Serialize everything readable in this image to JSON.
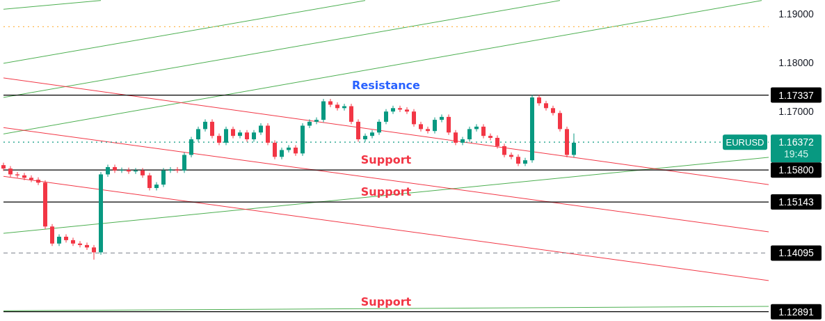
{
  "chart_data": {
    "type": "candlestick",
    "categories": [
      null,
      null,
      null,
      null,
      null,
      null,
      null,
      null,
      null,
      null,
      null,
      null,
      null,
      null,
      null,
      null,
      null,
      null,
      null,
      null,
      null,
      null,
      null,
      null,
      null,
      null,
      null,
      null,
      null,
      null,
      null,
      null,
      null,
      null,
      null,
      null,
      null,
      null,
      null,
      null,
      null,
      null,
      null,
      null,
      null,
      null,
      null,
      null,
      null,
      null,
      null,
      null,
      null,
      null,
      null,
      null,
      null,
      null,
      null,
      null,
      null,
      null,
      null,
      null,
      null,
      null,
      null,
      null,
      null,
      null,
      null,
      null,
      null,
      null,
      null,
      null,
      null,
      null,
      null,
      null,
      null,
      null,
      null,
      null,
      null,
      null,
      null,
      null,
      null,
      null,
      null,
      null,
      null,
      null,
      null,
      null,
      null,
      null,
      null,
      null,
      null,
      null,
      null,
      null,
      null,
      null,
      null,
      null,
      null,
      null,
      null
    ],
    "ohlc": [
      [
        1.159,
        1.1595,
        1.1578,
        1.1583
      ],
      [
        1.1583,
        1.1588,
        1.1566,
        1.1571
      ],
      [
        1.1571,
        1.1576,
        1.1564,
        1.1569
      ],
      [
        1.1569,
        1.1574,
        1.1559,
        1.1564
      ],
      [
        1.1564,
        1.1569,
        1.1555,
        1.156
      ],
      [
        1.156,
        1.1565,
        1.1549,
        1.1554
      ],
      [
        1.1554,
        1.1559,
        1.1459,
        1.1464
      ],
      [
        1.1464,
        1.1469,
        1.1424,
        1.1429
      ],
      [
        1.1429,
        1.1448,
        1.1424,
        1.1443
      ],
      [
        1.1443,
        1.1448,
        1.1431,
        1.1436
      ],
      [
        1.1436,
        1.1441,
        1.1424,
        1.1429
      ],
      [
        1.1429,
        1.1434,
        1.1421,
        1.1426
      ],
      [
        1.1426,
        1.1431,
        1.1416,
        1.1421
      ],
      [
        1.1421,
        1.1426,
        1.1396,
        1.1411
      ],
      [
        1.1411,
        1.1576,
        1.1406,
        1.1571
      ],
      [
        1.1571,
        1.1591,
        1.1566,
        1.1586
      ],
      [
        1.1586,
        1.1591,
        1.1574,
        1.1579
      ],
      [
        1.1579,
        1.1585,
        1.1574,
        1.158
      ],
      [
        1.158,
        1.1585,
        1.1572,
        1.1577
      ],
      [
        1.1577,
        1.1584,
        1.1572,
        1.1579
      ],
      [
        1.1579,
        1.1584,
        1.1564,
        1.1569
      ],
      [
        1.1569,
        1.1574,
        1.1538,
        1.1543
      ],
      [
        1.1543,
        1.1555,
        1.1538,
        1.155
      ],
      [
        1.155,
        1.1584,
        1.1545,
        1.1579
      ],
      [
        1.1579,
        1.1586,
        1.1574,
        1.1581
      ],
      [
        1.1581,
        1.1586,
        1.1574,
        1.1579
      ],
      [
        1.1579,
        1.1616,
        1.1574,
        1.1611
      ],
      [
        1.1611,
        1.1648,
        1.1606,
        1.1643
      ],
      [
        1.1643,
        1.1669,
        1.1638,
        1.1664
      ],
      [
        1.1664,
        1.1684,
        1.1659,
        1.1679
      ],
      [
        1.1679,
        1.1684,
        1.1645,
        1.165
      ],
      [
        1.165,
        1.1655,
        1.1631,
        1.1636
      ],
      [
        1.1636,
        1.1669,
        1.1631,
        1.1664
      ],
      [
        1.1664,
        1.1669,
        1.1645,
        1.165
      ],
      [
        1.165,
        1.1662,
        1.1645,
        1.1657
      ],
      [
        1.1657,
        1.1662,
        1.1638,
        1.1643
      ],
      [
        1.1643,
        1.1662,
        1.1638,
        1.1657
      ],
      [
        1.1657,
        1.1676,
        1.1652,
        1.1671
      ],
      [
        1.1671,
        1.1676,
        1.1631,
        1.1636
      ],
      [
        1.1636,
        1.1641,
        1.1602,
        1.1607
      ],
      [
        1.1607,
        1.1626,
        1.1602,
        1.1621
      ],
      [
        1.1621,
        1.1631,
        1.1616,
        1.1626
      ],
      [
        1.1626,
        1.1631,
        1.1609,
        1.1614
      ],
      [
        1.1614,
        1.1676,
        1.1609,
        1.1671
      ],
      [
        1.1671,
        1.1684,
        1.1666,
        1.1679
      ],
      [
        1.1679,
        1.1688,
        1.1674,
        1.1683
      ],
      [
        1.1683,
        1.1726,
        1.1678,
        1.1721
      ],
      [
        1.1721,
        1.1726,
        1.1709,
        1.1714
      ],
      [
        1.1714,
        1.1719,
        1.1702,
        1.1707
      ],
      [
        1.1707,
        1.1716,
        1.1702,
        1.1711
      ],
      [
        1.1711,
        1.1716,
        1.1674,
        1.1679
      ],
      [
        1.1679,
        1.1684,
        1.1638,
        1.1643
      ],
      [
        1.1643,
        1.1655,
        1.1638,
        1.165
      ],
      [
        1.165,
        1.1662,
        1.1645,
        1.1657
      ],
      [
        1.1657,
        1.1684,
        1.1652,
        1.1679
      ],
      [
        1.1679,
        1.1705,
        1.1674,
        1.17
      ],
      [
        1.17,
        1.1712,
        1.1695,
        1.1707
      ],
      [
        1.1707,
        1.1712,
        1.1699,
        1.1704
      ],
      [
        1.1704,
        1.1709,
        1.1695,
        1.17
      ],
      [
        1.17,
        1.1705,
        1.1669,
        1.1674
      ],
      [
        1.1674,
        1.1679,
        1.1659,
        1.1664
      ],
      [
        1.1664,
        1.1669,
        1.1655,
        1.166
      ],
      [
        1.166,
        1.1688,
        1.1655,
        1.1683
      ],
      [
        1.1683,
        1.1694,
        1.1678,
        1.1689
      ],
      [
        1.1689,
        1.1694,
        1.1652,
        1.1657
      ],
      [
        1.1657,
        1.1662,
        1.1631,
        1.1636
      ],
      [
        1.1636,
        1.1648,
        1.1631,
        1.1643
      ],
      [
        1.1643,
        1.1669,
        1.1638,
        1.1664
      ],
      [
        1.1664,
        1.1674,
        1.1659,
        1.1669
      ],
      [
        1.1669,
        1.1674,
        1.1645,
        1.165
      ],
      [
        1.165,
        1.1655,
        1.1641,
        1.1646
      ],
      [
        1.1646,
        1.1651,
        1.1624,
        1.1629
      ],
      [
        1.1629,
        1.1634,
        1.1606,
        1.1611
      ],
      [
        1.1611,
        1.1616,
        1.1602,
        1.1607
      ],
      [
        1.1607,
        1.1612,
        1.1588,
        1.1593
      ],
      [
        1.1593,
        1.1605,
        1.1588,
        1.16
      ],
      [
        1.16,
        1.1734,
        1.1595,
        1.1729
      ],
      [
        1.1729,
        1.1734,
        1.1712,
        1.1717
      ],
      [
        1.1717,
        1.1722,
        1.1702,
        1.1707
      ],
      [
        1.1707,
        1.1712,
        1.1692,
        1.1697
      ],
      [
        1.1697,
        1.1702,
        1.1659,
        1.1664
      ],
      [
        1.1664,
        1.1669,
        1.1606,
        1.1611
      ],
      [
        1.1611,
        1.1655,
        1.1606,
        1.1636
      ],
      null,
      null,
      null,
      null,
      null,
      null,
      null,
      null,
      null,
      null,
      null,
      null,
      null,
      null,
      null,
      null,
      null,
      null,
      null,
      null,
      null,
      null,
      null,
      null,
      null,
      null,
      null,
      null
    ],
    "series": [
      {
        "type": "line",
        "color": "#4caf50",
        "values": [
          1.191,
          null,
          null,
          null,
          null,
          null,
          null,
          null,
          null,
          null,
          null,
          null,
          null,
          null,
          1.1928,
          null,
          null,
          null,
          null,
          null,
          null,
          null,
          null,
          null,
          null,
          null,
          null,
          null,
          null,
          null,
          null,
          null,
          null,
          null,
          null,
          null,
          null,
          null,
          null,
          null,
          null,
          null,
          null,
          null,
          null,
          null,
          null,
          null,
          null,
          null,
          null,
          null,
          null,
          null,
          null,
          null,
          null,
          null,
          null,
          null,
          null,
          null,
          null,
          null,
          null,
          null,
          null,
          null,
          null,
          null,
          null,
          null,
          null,
          null,
          null,
          null,
          null,
          null,
          null,
          null,
          null,
          null,
          null,
          null,
          null,
          null,
          null,
          null,
          null,
          null,
          null,
          null,
          null,
          null,
          null,
          null,
          null,
          null,
          null,
          null,
          null,
          null,
          null,
          null,
          null,
          null,
          null,
          null,
          null,
          null,
          null
        ]
      },
      {
        "type": "line",
        "color": "#4caf50",
        "values": [
          1.1799,
          null,
          null,
          null,
          null,
          null,
          null,
          null,
          null,
          null,
          null,
          null,
          null,
          null,
          null,
          null,
          null,
          null,
          null,
          null,
          null,
          null,
          null,
          null,
          null,
          null,
          null,
          null,
          null,
          null,
          null,
          null,
          null,
          null,
          null,
          null,
          null,
          null,
          null,
          null,
          null,
          null,
          null,
          null,
          null,
          null,
          null,
          null,
          null,
          null,
          null,
          null,
          1.1928,
          null,
          null,
          null,
          null,
          null,
          null,
          null,
          null,
          null,
          null,
          null,
          null,
          null,
          null,
          null,
          null,
          null,
          null,
          null,
          null,
          null,
          null,
          null,
          null,
          null,
          null,
          null,
          null,
          null,
          null,
          null,
          null,
          null,
          null,
          null,
          null,
          null,
          null,
          null,
          null,
          null,
          null,
          null,
          null,
          null,
          null,
          null,
          null,
          null,
          null,
          null,
          null,
          null,
          null,
          null,
          null,
          null,
          null
        ]
      },
      {
        "type": "line",
        "color": "#4caf50",
        "values": [
          1.1729,
          null,
          null,
          null,
          null,
          null,
          null,
          null,
          null,
          null,
          null,
          null,
          null,
          null,
          null,
          null,
          null,
          null,
          null,
          null,
          null,
          null,
          null,
          null,
          null,
          null,
          null,
          null,
          null,
          null,
          null,
          null,
          null,
          null,
          null,
          null,
          null,
          null,
          null,
          null,
          null,
          null,
          null,
          null,
          null,
          null,
          null,
          null,
          null,
          null,
          null,
          null,
          null,
          null,
          null,
          null,
          null,
          null,
          null,
          null,
          null,
          null,
          null,
          null,
          null,
          null,
          null,
          null,
          null,
          null,
          null,
          null,
          null,
          null,
          null,
          null,
          null,
          null,
          null,
          null,
          1.1928,
          null,
          null,
          null,
          null,
          null,
          null,
          null,
          null,
          null,
          null,
          null,
          null,
          null,
          null,
          null,
          null,
          null,
          null,
          null,
          null,
          null,
          null,
          null,
          null,
          null,
          null,
          null,
          null,
          null,
          null
        ]
      },
      {
        "type": "line",
        "color": "#4caf50",
        "values": [
          1.1654,
          null,
          null,
          null,
          null,
          null,
          null,
          null,
          null,
          null,
          null,
          null,
          null,
          null,
          null,
          null,
          null,
          null,
          null,
          null,
          null,
          null,
          null,
          null,
          null,
          null,
          null,
          null,
          null,
          null,
          null,
          null,
          null,
          null,
          null,
          null,
          null,
          null,
          null,
          null,
          null,
          null,
          null,
          null,
          null,
          null,
          null,
          null,
          null,
          null,
          null,
          null,
          null,
          null,
          null,
          null,
          null,
          null,
          null,
          null,
          null,
          null,
          null,
          null,
          null,
          null,
          null,
          null,
          null,
          null,
          null,
          null,
          null,
          null,
          null,
          null,
          null,
          null,
          null,
          null,
          null,
          null,
          null,
          null,
          null,
          null,
          null,
          null,
          null,
          null,
          null,
          null,
          null,
          null,
          null,
          null,
          null,
          null,
          null,
          null,
          null,
          null,
          null,
          null,
          null,
          null,
          null,
          null,
          null,
          1.1928,
          null
        ]
      },
      {
        "type": "line",
        "color": "#4caf50",
        "values": [
          1.145,
          null,
          null,
          null,
          null,
          null,
          null,
          null,
          null,
          null,
          null,
          null,
          null,
          null,
          null,
          null,
          null,
          null,
          null,
          null,
          null,
          null,
          null,
          null,
          null,
          null,
          null,
          null,
          null,
          null,
          null,
          null,
          null,
          null,
          null,
          null,
          null,
          null,
          null,
          null,
          null,
          null,
          null,
          null,
          null,
          null,
          null,
          null,
          null,
          null,
          null,
          null,
          null,
          null,
          null,
          null,
          null,
          null,
          null,
          null,
          null,
          null,
          null,
          null,
          null,
          null,
          null,
          null,
          null,
          null,
          null,
          null,
          null,
          null,
          null,
          null,
          null,
          null,
          null,
          null,
          null,
          null,
          null,
          null,
          null,
          null,
          null,
          null,
          null,
          null,
          null,
          null,
          null,
          null,
          null,
          null,
          null,
          null,
          null,
          null,
          null,
          null,
          null,
          null,
          null,
          null,
          null,
          null,
          null,
          null,
          1.1606
        ]
      },
      {
        "type": "line",
        "color": "#4caf50",
        "values": [
          1.1291,
          null,
          null,
          null,
          null,
          null,
          null,
          null,
          null,
          null,
          null,
          null,
          null,
          null,
          null,
          null,
          null,
          null,
          null,
          null,
          null,
          null,
          null,
          null,
          null,
          null,
          null,
          null,
          null,
          null,
          null,
          null,
          null,
          null,
          null,
          null,
          null,
          null,
          null,
          null,
          null,
          null,
          null,
          null,
          null,
          null,
          null,
          null,
          null,
          null,
          null,
          null,
          null,
          null,
          null,
          null,
          null,
          null,
          null,
          null,
          null,
          null,
          null,
          null,
          null,
          null,
          null,
          null,
          null,
          null,
          null,
          null,
          null,
          null,
          null,
          null,
          null,
          null,
          null,
          null,
          null,
          null,
          null,
          null,
          null,
          null,
          null,
          null,
          null,
          null,
          null,
          null,
          null,
          null,
          null,
          null,
          null,
          null,
          null,
          null,
          null,
          null,
          null,
          null,
          null,
          null,
          null,
          null,
          null,
          null,
          1.13
        ]
      },
      {
        "type": "line",
        "color": "#f23645",
        "values": [
          1.1769,
          null,
          null,
          null,
          null,
          null,
          null,
          null,
          null,
          null,
          null,
          null,
          null,
          null,
          null,
          null,
          null,
          null,
          null,
          null,
          null,
          null,
          null,
          null,
          null,
          null,
          null,
          null,
          null,
          null,
          null,
          null,
          null,
          null,
          null,
          null,
          null,
          null,
          null,
          null,
          null,
          null,
          null,
          null,
          null,
          null,
          null,
          null,
          null,
          null,
          null,
          null,
          null,
          null,
          null,
          null,
          null,
          null,
          null,
          null,
          null,
          null,
          null,
          null,
          null,
          null,
          null,
          null,
          null,
          null,
          null,
          null,
          null,
          null,
          null,
          null,
          null,
          null,
          null,
          null,
          null,
          null,
          null,
          null,
          null,
          null,
          null,
          null,
          null,
          null,
          null,
          null,
          null,
          null,
          null,
          null,
          null,
          null,
          null,
          null,
          null,
          null,
          null,
          null,
          null,
          null,
          null,
          null,
          null,
          null,
          1.155
        ]
      },
      {
        "type": "line",
        "color": "#f23645",
        "values": [
          1.1667,
          null,
          null,
          null,
          null,
          null,
          null,
          null,
          null,
          null,
          null,
          null,
          null,
          null,
          null,
          null,
          null,
          null,
          null,
          null,
          null,
          null,
          null,
          null,
          null,
          null,
          null,
          null,
          null,
          null,
          null,
          null,
          null,
          null,
          null,
          null,
          null,
          null,
          null,
          null,
          null,
          null,
          null,
          null,
          null,
          null,
          null,
          null,
          null,
          null,
          null,
          null,
          null,
          null,
          null,
          null,
          null,
          null,
          null,
          null,
          null,
          null,
          null,
          null,
          null,
          null,
          null,
          null,
          null,
          null,
          null,
          null,
          null,
          null,
          null,
          null,
          null,
          null,
          null,
          null,
          null,
          null,
          null,
          null,
          null,
          null,
          null,
          null,
          null,
          null,
          null,
          null,
          null,
          null,
          null,
          null,
          null,
          null,
          null,
          null,
          null,
          null,
          null,
          null,
          null,
          null,
          null,
          null,
          null,
          null,
          1.1453
        ]
      },
      {
        "type": "line",
        "color": "#f23645",
        "values": [
          1.1567,
          null,
          null,
          null,
          null,
          null,
          null,
          null,
          null,
          null,
          null,
          null,
          null,
          null,
          null,
          null,
          null,
          null,
          null,
          null,
          null,
          null,
          null,
          null,
          null,
          null,
          null,
          null,
          null,
          null,
          null,
          null,
          null,
          null,
          null,
          null,
          null,
          null,
          null,
          null,
          null,
          null,
          null,
          null,
          null,
          null,
          null,
          null,
          null,
          null,
          null,
          null,
          null,
          null,
          null,
          null,
          null,
          null,
          null,
          null,
          null,
          null,
          null,
          null,
          null,
          null,
          null,
          null,
          null,
          null,
          null,
          null,
          null,
          null,
          null,
          null,
          null,
          null,
          null,
          null,
          null,
          null,
          null,
          null,
          null,
          null,
          null,
          null,
          null,
          null,
          null,
          null,
          null,
          null,
          null,
          null,
          null,
          null,
          null,
          null,
          null,
          null,
          null,
          null,
          null,
          null,
          null,
          null,
          null,
          null,
          1.1353
        ]
      }
    ],
    "ylim": [
      1.127,
      1.1929
    ],
    "yticks": [
      {
        "value": 1.19,
        "label": "1.19000"
      },
      {
        "value": 1.18,
        "label": "1.18000"
      },
      {
        "value": 1.17,
        "label": "1.17000"
      },
      {
        "value": 1.17337,
        "label": "1.17337"
      },
      {
        "value": 1.16372,
        "label": "1.16372"
      },
      {
        "value": 1.158,
        "label": "1.15800"
      },
      {
        "value": 1.15143,
        "label": "1.15143"
      },
      {
        "value": 1.14095,
        "label": "1.14095"
      },
      {
        "value": 1.12891,
        "label": "1.12891"
      }
    ],
    "ref_lines": [
      {
        "axis": "y",
        "value": 1.17337,
        "label": "Resistance",
        "color": "#000000",
        "line_style": "solid"
      },
      {
        "axis": "y",
        "value": 1.158,
        "label": "Support",
        "color": "#000000",
        "line_style": "solid"
      },
      {
        "axis": "y",
        "value": 1.15143,
        "label": "Support",
        "color": "#000000",
        "line_style": "solid"
      },
      {
        "axis": "y",
        "value": 1.12891,
        "label": "Support",
        "color": "#000000",
        "line_style": "solid"
      },
      {
        "axis": "y",
        "value": 1.14095,
        "color": "#9598a1",
        "line_style": "dashed"
      },
      {
        "axis": "y",
        "value": 1.1874,
        "color": "#ffb74d",
        "line_style": "dotted"
      },
      {
        "axis": "y",
        "value": 1.16372,
        "label": "EURUSD",
        "color": "#089981",
        "line_style": "dotted"
      }
    ],
    "annotations": [
      "19:45"
    ],
    "grid": false
  }
}
